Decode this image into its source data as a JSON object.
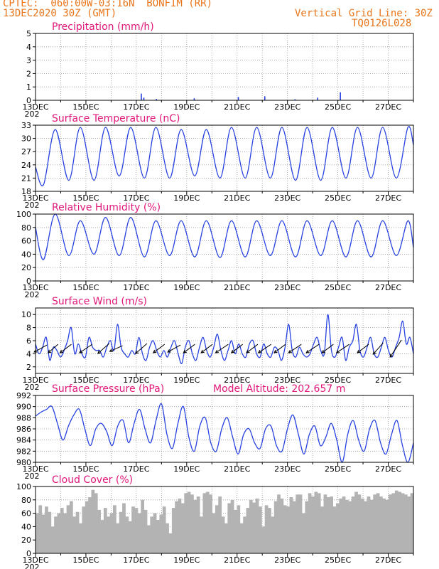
{
  "header": {
    "line1_left": "CPTEC:  060:00W-03:16N  BONFIM (RR)",
    "line2_left": "13DEC2020 30Z (GMT)",
    "line1_right": "Vertical Grid Line: 30Z",
    "line2_right": "TQ0126L028"
  },
  "colors": {
    "header": "#e8751a",
    "title": "#e0177a",
    "series": "#2742e0",
    "bars": "#b3b3b3",
    "arrows": "#000000"
  },
  "x_axis": {
    "date_labels": [
      "13DEC",
      "15DEC",
      "17DEC",
      "19DEC",
      "21DEC",
      "23DEC",
      "25DEC",
      "27DEC"
    ],
    "year_label": "202"
  },
  "chart_data": [
    {
      "id": "precip",
      "type": "bar",
      "title": "Precipitation (mm/h)",
      "ylim": [
        0,
        5
      ],
      "yticks": [
        0,
        1,
        2,
        3,
        4,
        5
      ],
      "events": [
        [
          4.2,
          0.5
        ],
        [
          4.3,
          0.2
        ],
        [
          4.8,
          0.1
        ],
        [
          6.3,
          0.15
        ],
        [
          8.05,
          0.25
        ],
        [
          9.1,
          0.3
        ],
        [
          10.3,
          0.08
        ],
        [
          11.2,
          0.2
        ],
        [
          12.1,
          0.6
        ]
      ]
    },
    {
      "id": "temp",
      "type": "line",
      "title": "Surface Temperature (nC)",
      "ylim": [
        18,
        33
      ],
      "yticks": [
        18,
        21,
        24,
        27,
        30,
        33
      ],
      "daily_max": [
        32,
        32.5,
        32.5,
        32.5,
        32.5,
        32,
        32,
        32.5,
        32.5,
        32.5,
        32.5,
        32.5,
        32.5,
        32.5,
        32.5
      ],
      "daily_min": [
        19.5,
        20.5,
        20.5,
        21.5,
        21,
        21,
        21.5,
        21,
        21,
        21,
        20.5,
        20.5,
        21,
        21,
        21
      ],
      "start_value": 23.5,
      "end_value": 28.5
    },
    {
      "id": "rh",
      "type": "line",
      "title": "Relative Humidity (%)",
      "ylim": [
        0,
        100
      ],
      "yticks": [
        0,
        20,
        40,
        60,
        80,
        100
      ],
      "daily_max": [
        100,
        90,
        95,
        95,
        90,
        90,
        90,
        90,
        90,
        90,
        90,
        90,
        90,
        90,
        90
      ],
      "daily_min": [
        32,
        38,
        40,
        38,
        36,
        38,
        36,
        35,
        36,
        38,
        36,
        38,
        36,
        36,
        38
      ],
      "start_value": 80,
      "end_value": 50
    },
    {
      "id": "wind",
      "type": "line",
      "title": "Surface Wind (m/s)",
      "ylim": [
        1,
        11
      ],
      "yticks": [
        2,
        4,
        6,
        8,
        10
      ],
      "speed": [
        5.5,
        4,
        5,
        6.5,
        3,
        5,
        4.5,
        3.5,
        4.5,
        6,
        8,
        4,
        5.5,
        4,
        3.5,
        6.5,
        5,
        4.5,
        4.5,
        3.5,
        5,
        6,
        4.5,
        8.5,
        5,
        4,
        3.5,
        4.5,
        4,
        6.5,
        4,
        3,
        5,
        6,
        4.5,
        3.5,
        4.5,
        3.5,
        5,
        6,
        4,
        2.5,
        5,
        6,
        4,
        3,
        5,
        6.5,
        4.5,
        3.5,
        5,
        7,
        4.5,
        3,
        4.5,
        6,
        4,
        5.5,
        4,
        3.5,
        5.5,
        6,
        4,
        3.5,
        5.5,
        4,
        3.5,
        5,
        4.5,
        3,
        5,
        8.5,
        4.5,
        3.5,
        5,
        4,
        3.5,
        4,
        5.5,
        6.5,
        4.5,
        4,
        10,
        4.5,
        3.5,
        5,
        6.5,
        3,
        5,
        6,
        8.5,
        4.5,
        3.5,
        5,
        6.5,
        4,
        3.5,
        5,
        6.5,
        4.5,
        3.5,
        5,
        6.5,
        9,
        5.5,
        6.5,
        4
      ],
      "arrows": [
        {
          "d": 0.2,
          "dx": 18,
          "dy": -10
        },
        {
          "d": 0.7,
          "dx": 14,
          "dy": -12
        },
        {
          "d": 1.2,
          "dx": 16,
          "dy": -12
        },
        {
          "d": 2,
          "dx": 18,
          "dy": -12
        },
        {
          "d": 2.7,
          "dx": 16,
          "dy": -14
        },
        {
          "d": 3.2,
          "dx": 18,
          "dy": -8
        },
        {
          "d": 4.2,
          "dx": 16,
          "dy": -14
        },
        {
          "d": 4.9,
          "dx": 16,
          "dy": -12
        },
        {
          "d": 5.5,
          "dx": 18,
          "dy": -10
        },
        {
          "d": 6.1,
          "dx": 16,
          "dy": -12
        },
        {
          "d": 6.8,
          "dx": 16,
          "dy": -12
        },
        {
          "d": 7.4,
          "dx": 18,
          "dy": -12
        },
        {
          "d": 8,
          "dx": 16,
          "dy": -12
        },
        {
          "d": 8.6,
          "dx": 16,
          "dy": -12
        },
        {
          "d": 9.1,
          "dx": 18,
          "dy": -12
        },
        {
          "d": 9.7,
          "dx": 16,
          "dy": -12
        },
        {
          "d": 10.3,
          "dx": 18,
          "dy": -12
        },
        {
          "d": 11,
          "dx": 18,
          "dy": -12
        },
        {
          "d": 11.6,
          "dx": 16,
          "dy": -12
        },
        {
          "d": 12.2,
          "dx": 18,
          "dy": -12
        },
        {
          "d": 13,
          "dx": 16,
          "dy": -12
        },
        {
          "d": 13.6,
          "dx": 14,
          "dy": -16
        },
        {
          "d": 14.3,
          "dx": 16,
          "dy": -24
        }
      ]
    },
    {
      "id": "pres",
      "type": "line",
      "title": "Surface Pressure (hPa)",
      "extra_label": "Model Altitude: 202.657 m",
      "ylim": [
        980,
        992
      ],
      "yticks": [
        980,
        982,
        984,
        986,
        988,
        990,
        992
      ],
      "values": [
        988.3,
        989,
        989.5,
        990,
        987,
        984,
        986.5,
        988.5,
        989.5,
        986,
        983,
        986,
        987,
        985.5,
        983,
        986.5,
        987.5,
        983.5,
        987,
        989.5,
        986,
        983.5,
        987.5,
        990.5,
        985,
        982.5,
        987,
        990,
        984.5,
        982,
        986.5,
        988,
        983.5,
        982,
        986,
        988,
        984.5,
        981.5,
        985,
        986,
        983.5,
        982.5,
        986,
        986.5,
        983,
        982,
        986,
        988.5,
        985,
        981.5,
        985,
        986.5,
        983,
        984.5,
        987,
        984,
        980,
        985,
        987.5,
        984,
        982,
        986,
        987.5,
        983.5,
        981.5,
        985,
        987.5,
        983,
        980,
        983.5
      ],
      "end_value": 983.5
    },
    {
      "id": "cloud",
      "type": "bar",
      "title": "Cloud Cover (%)",
      "ylim": [
        0,
        100
      ],
      "yticks": [
        0,
        20,
        40,
        60,
        80,
        100
      ],
      "values": [
        60,
        72,
        58,
        70,
        62,
        40,
        55,
        60,
        68,
        60,
        72,
        78,
        55,
        62,
        45,
        70,
        78,
        84,
        95,
        90,
        65,
        50,
        68,
        55,
        60,
        72,
        45,
        62,
        75,
        55,
        48,
        70,
        68,
        60,
        80,
        65,
        42,
        55,
        60,
        50,
        58,
        70,
        45,
        30,
        68,
        78,
        82,
        75,
        90,
        92,
        88,
        80,
        85,
        55,
        90,
        92,
        88,
        60,
        72,
        85,
        55,
        45,
        75,
        80,
        65,
        72,
        45,
        55,
        68,
        80,
        76,
        82,
        70,
        40,
        72,
        68,
        55,
        78,
        88,
        82,
        72,
        70,
        84,
        78,
        88,
        88,
        60,
        78,
        90,
        85,
        92,
        90,
        70,
        88,
        84,
        85,
        70,
        75,
        82,
        85,
        80,
        78,
        85,
        92,
        88,
        82,
        78,
        85,
        80,
        88,
        90,
        85,
        82,
        80,
        88,
        90,
        94,
        92,
        90,
        88,
        85,
        90
      ]
    }
  ]
}
